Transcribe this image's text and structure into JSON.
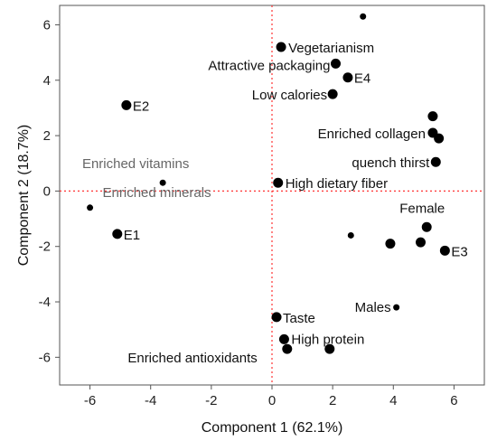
{
  "chart_data": {
    "type": "scatter",
    "xlabel": "Component 1 (62.1%)",
    "ylabel": "Component 2 (18.7%)",
    "xlim": [
      -7,
      7
    ],
    "ylim": [
      -7,
      6.7
    ],
    "xticks": [
      -6,
      -4,
      -2,
      0,
      2,
      4,
      6
    ],
    "yticks": [
      -6,
      -4,
      -2,
      0,
      2,
      4,
      6
    ],
    "xtick_labels": [
      "-6",
      "-4",
      "-2",
      "0",
      "2",
      "4",
      "6"
    ],
    "ytick_labels": [
      "-6",
      "-4",
      "-2",
      "0",
      "2",
      "4",
      "6"
    ],
    "reference_lines": {
      "x": 0,
      "y": 0,
      "color": "#ff3333",
      "style": "dotted"
    },
    "points": [
      {
        "x": 3.0,
        "y": 6.3,
        "label": "",
        "size": "small"
      },
      {
        "x": 0.3,
        "y": 5.2,
        "label": "Vegetarianism",
        "size": "large"
      },
      {
        "x": 2.1,
        "y": 4.6,
        "label": "Attractive packaging",
        "size": "large"
      },
      {
        "x": 2.5,
        "y": 4.1,
        "label": "E4",
        "size": "large"
      },
      {
        "x": 2.0,
        "y": 3.5,
        "label": "Low calories",
        "size": "large"
      },
      {
        "x": -4.8,
        "y": 3.1,
        "label": "E2",
        "size": "large"
      },
      {
        "x": 5.3,
        "y": 2.7,
        "label": "",
        "size": "large"
      },
      {
        "x": 5.3,
        "y": 2.1,
        "label": "Enriched collagen",
        "size": "large"
      },
      {
        "x": 5.5,
        "y": 1.9,
        "label": "",
        "size": "large"
      },
      {
        "x": 5.4,
        "y": 1.05,
        "label": "quench thirst",
        "size": "large"
      },
      {
        "x": -3.6,
        "y": 0.3,
        "label": "Enriched vitamins",
        "size": "small",
        "grey": true
      },
      {
        "x": 0.2,
        "y": 0.3,
        "label": "High dietary fiber",
        "size": "large"
      },
      {
        "x": -6.0,
        "y": -0.6,
        "label": "Enriched minerals",
        "size": "small",
        "grey": true
      },
      {
        "x": -5.1,
        "y": -1.55,
        "label": "E1",
        "size": "large"
      },
      {
        "x": 5.1,
        "y": -1.3,
        "label": "Female",
        "size": "large"
      },
      {
        "x": 2.6,
        "y": -1.6,
        "label": "",
        "size": "small"
      },
      {
        "x": 3.9,
        "y": -1.9,
        "label": "",
        "size": "large"
      },
      {
        "x": 4.9,
        "y": -1.85,
        "label": "",
        "size": "large"
      },
      {
        "x": 5.7,
        "y": -2.15,
        "label": "E3",
        "size": "large"
      },
      {
        "x": 4.1,
        "y": -4.2,
        "label": "Males",
        "size": "small"
      },
      {
        "x": 0.15,
        "y": -4.55,
        "label": "Taste",
        "size": "large"
      },
      {
        "x": 0.4,
        "y": -5.35,
        "label": "High protein",
        "size": "large"
      },
      {
        "x": 0.5,
        "y": -5.7,
        "label": "",
        "size": "large"
      },
      {
        "x": 1.9,
        "y": -5.7,
        "label": "Enriched antioxidants",
        "size": "large"
      }
    ]
  }
}
